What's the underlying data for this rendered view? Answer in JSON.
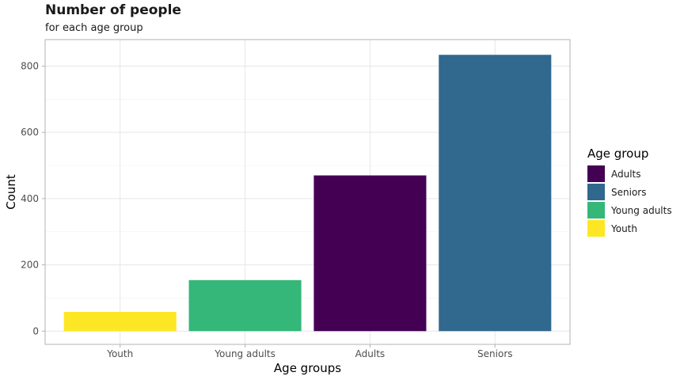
{
  "chart_data": {
    "type": "bar",
    "title": "Number of people",
    "subtitle": "for each age group",
    "xlabel": "Age groups",
    "ylabel": "Count",
    "categories": [
      "Youth",
      "Young adults",
      "Adults",
      "Seniors"
    ],
    "values": [
      58,
      154,
      470,
      834
    ],
    "bar_colors": [
      "#FDE725",
      "#35B779",
      "#440154",
      "#31688E"
    ],
    "ylim": [
      -40,
      880
    ],
    "yticks": [
      0,
      200,
      400,
      600,
      800
    ],
    "grid": true,
    "legend": {
      "title": "Age group",
      "position": "right",
      "entries": [
        {
          "label": "Adults",
          "color": "#440154"
        },
        {
          "label": "Seniors",
          "color": "#31688E"
        },
        {
          "label": "Young adults",
          "color": "#35B779"
        },
        {
          "label": "Youth",
          "color": "#FDE725"
        }
      ]
    }
  }
}
